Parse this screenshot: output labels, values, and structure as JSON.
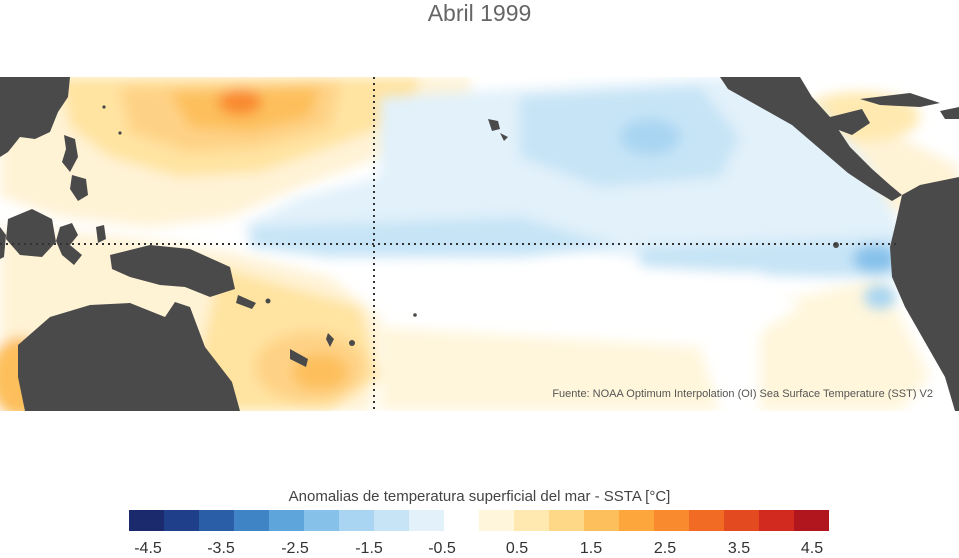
{
  "title": "Abril 1999",
  "source": "Fuente: NOAA Optimum Interpolation (OI) Sea Surface Temperature (SST) V2",
  "colorbar": {
    "title": "Anomalias de temperatura superficial del mar - SSTA  [°C]",
    "colors": [
      "#1a2a6c",
      "#1f3f8a",
      "#2a5fa8",
      "#3f84c4",
      "#5ea5dc",
      "#86c1ea",
      "#a9d5f2",
      "#c6e4f6",
      "#e2f1fa",
      "#ffffff",
      "#fff6dc",
      "#ffe9b0",
      "#fed886",
      "#fdbf5c",
      "#fca63c",
      "#f98a2d",
      "#f26b24",
      "#e34a1f",
      "#d22a1f",
      "#b1161e"
    ],
    "tick_labels": [
      "-4.5",
      "-3.5",
      "-2.5",
      "-1.5",
      "-0.5",
      "0.5",
      "1.5",
      "2.5",
      "3.5",
      "4.5"
    ]
  },
  "colors": {
    "land": "#4a4a4a",
    "ocean_base": "#ffffff",
    "grid_line": "#333333"
  }
}
